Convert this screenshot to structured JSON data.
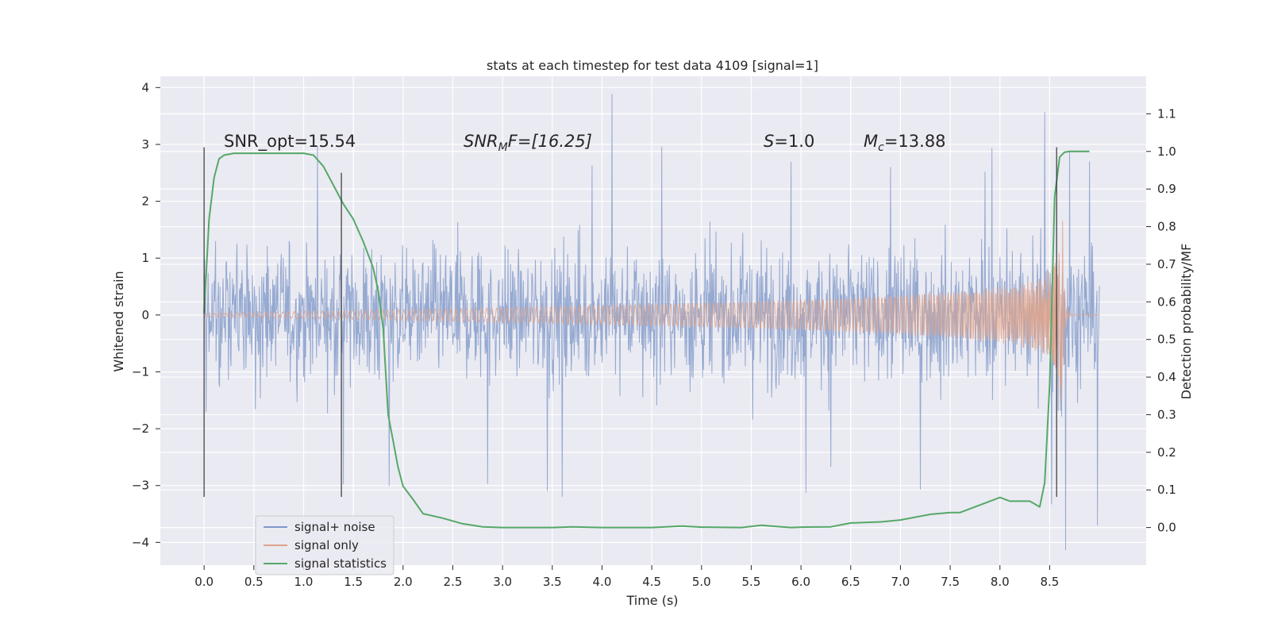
{
  "chart_data": {
    "type": "line",
    "title": "stats at each timestep for test data 4109 [signal=1]",
    "xlabel": "Time (s)",
    "ylabel": "Whitened strain",
    "y2label": "Detection probability/MF",
    "xlim": [
      -0.44,
      9.47
    ],
    "ylim": [
      -4.4,
      4.2
    ],
    "y2lim": [
      -0.1,
      1.2
    ],
    "xticks": [
      0.0,
      0.5,
      1.0,
      1.5,
      2.0,
      2.5,
      3.0,
      3.5,
      4.0,
      4.5,
      5.0,
      5.5,
      6.0,
      6.5,
      7.0,
      7.5,
      8.0,
      8.5
    ],
    "xtick_labels": [
      "0.0",
      "0.5",
      "1.0",
      "1.5",
      "2.0",
      "2.5",
      "3.0",
      "3.5",
      "4.0",
      "4.5",
      "5.0",
      "5.5",
      "6.0",
      "6.5",
      "7.0",
      "7.5",
      "8.0",
      "8.5"
    ],
    "yticks": [
      4,
      3,
      2,
      1,
      0,
      -1,
      -2,
      -3,
      -4
    ],
    "ytick_labels": [
      "4",
      "3",
      "2",
      "1",
      "0",
      "−1",
      "−2",
      "−3",
      "−4"
    ],
    "y2ticks": [
      1.1,
      1.0,
      0.9,
      0.8,
      0.7,
      0.6,
      0.5,
      0.4,
      0.3,
      0.2,
      0.1,
      0.0
    ],
    "y2tick_labels": [
      "1.1",
      "1.0",
      "0.9",
      "0.8",
      "0.7",
      "0.6",
      "0.5",
      "0.4",
      "0.3",
      "0.2",
      "0.1",
      "0.0"
    ],
    "annotations": {
      "snr_opt": "SNR_opt=15.54",
      "snr_mf_base": "SNR",
      "snr_mf_sub": "M",
      "snr_mf_rest": "F=[16.25]",
      "s_label": "S",
      "s_value": "=1.0",
      "mc_label": "M",
      "mc_sub": "c",
      "mc_value": "=13.88"
    },
    "vlines": [
      {
        "x": 0.0,
        "ymin": -3.2,
        "ymax": 2.95
      },
      {
        "x": 1.38,
        "ymin": -3.2,
        "ymax": 2.5
      },
      {
        "x": 8.57,
        "ymin": -3.2,
        "ymax": 2.95
      }
    ],
    "legend": {
      "position": "lower-left",
      "entries": [
        "signal+ noise",
        "signal only",
        "signal statistics"
      ]
    },
    "series": [
      {
        "name": "signal+ noise",
        "color": "#7f98c8",
        "axis": "left",
        "kind": "noise",
        "x_range": [
          0.0,
          9.0
        ],
        "typical_abs": 1.1,
        "peaks": [
          {
            "x": 0.02,
            "y": 2.3
          },
          {
            "x": 0.02,
            "y": -1.7
          },
          {
            "x": 1.14,
            "y": 2.95
          },
          {
            "x": 1.4,
            "y": -3.0
          },
          {
            "x": 1.86,
            "y": -3.0
          },
          {
            "x": 2.85,
            "y": -3.0
          },
          {
            "x": 3.45,
            "y": -3.1
          },
          {
            "x": 3.6,
            "y": -3.15
          },
          {
            "x": 3.9,
            "y": 2.7
          },
          {
            "x": 4.1,
            "y": 3.8
          },
          {
            "x": 4.6,
            "y": 2.85
          },
          {
            "x": 5.9,
            "y": 2.8
          },
          {
            "x": 6.05,
            "y": -3.05
          },
          {
            "x": 6.3,
            "y": -2.8
          },
          {
            "x": 6.9,
            "y": 2.7
          },
          {
            "x": 7.2,
            "y": -3.0
          },
          {
            "x": 7.85,
            "y": 2.7
          },
          {
            "x": 7.92,
            "y": 3.1
          },
          {
            "x": 8.45,
            "y": 3.2
          },
          {
            "x": 8.52,
            "y": -2.9
          },
          {
            "x": 8.66,
            "y": -4.0
          },
          {
            "x": 8.7,
            "y": 2.9
          },
          {
            "x": 8.9,
            "y": 2.7
          },
          {
            "x": 8.98,
            "y": -3.7
          }
        ]
      },
      {
        "name": "signal only",
        "color": "#e0a38a",
        "axis": "left",
        "kind": "chirp",
        "x_range": [
          0.0,
          9.0
        ],
        "merger_time": 8.62,
        "peak_amplitude": 2.0,
        "merger_min": -3.05
      },
      {
        "name": "signal statistics",
        "color": "#55a868",
        "axis": "right",
        "kind": "line",
        "x": [
          0.0,
          0.05,
          0.1,
          0.15,
          0.2,
          0.3,
          0.4,
          0.6,
          0.8,
          1.0,
          1.1,
          1.2,
          1.3,
          1.4,
          1.5,
          1.6,
          1.7,
          1.75,
          1.8,
          1.85,
          1.9,
          1.95,
          2.0,
          2.1,
          2.2,
          2.4,
          2.6,
          2.8,
          3.0,
          3.5,
          3.7,
          4.0,
          4.5,
          4.8,
          5.0,
          5.4,
          5.6,
          5.75,
          5.9,
          6.0,
          6.3,
          6.5,
          6.8,
          7.0,
          7.3,
          7.5,
          7.6,
          7.8,
          8.0,
          8.1,
          8.3,
          8.4,
          8.45,
          8.5,
          8.55,
          8.6,
          8.65,
          8.7,
          8.9
        ],
        "y": [
          0.57,
          0.82,
          0.93,
          0.98,
          0.99,
          0.995,
          0.995,
          0.995,
          0.995,
          0.995,
          0.99,
          0.96,
          0.91,
          0.86,
          0.82,
          0.76,
          0.69,
          0.63,
          0.53,
          0.3,
          0.23,
          0.16,
          0.11,
          0.075,
          0.037,
          0.025,
          0.01,
          0.002,
          0.0,
          0.0,
          0.002,
          0.0,
          0.0,
          0.004,
          0.001,
          0.0,
          0.006,
          0.003,
          0.0,
          0.001,
          0.002,
          0.012,
          0.015,
          0.02,
          0.035,
          0.04,
          0.04,
          0.06,
          0.08,
          0.07,
          0.07,
          0.055,
          0.12,
          0.38,
          0.88,
          0.985,
          0.998,
          1.0,
          1.0
        ]
      }
    ]
  }
}
